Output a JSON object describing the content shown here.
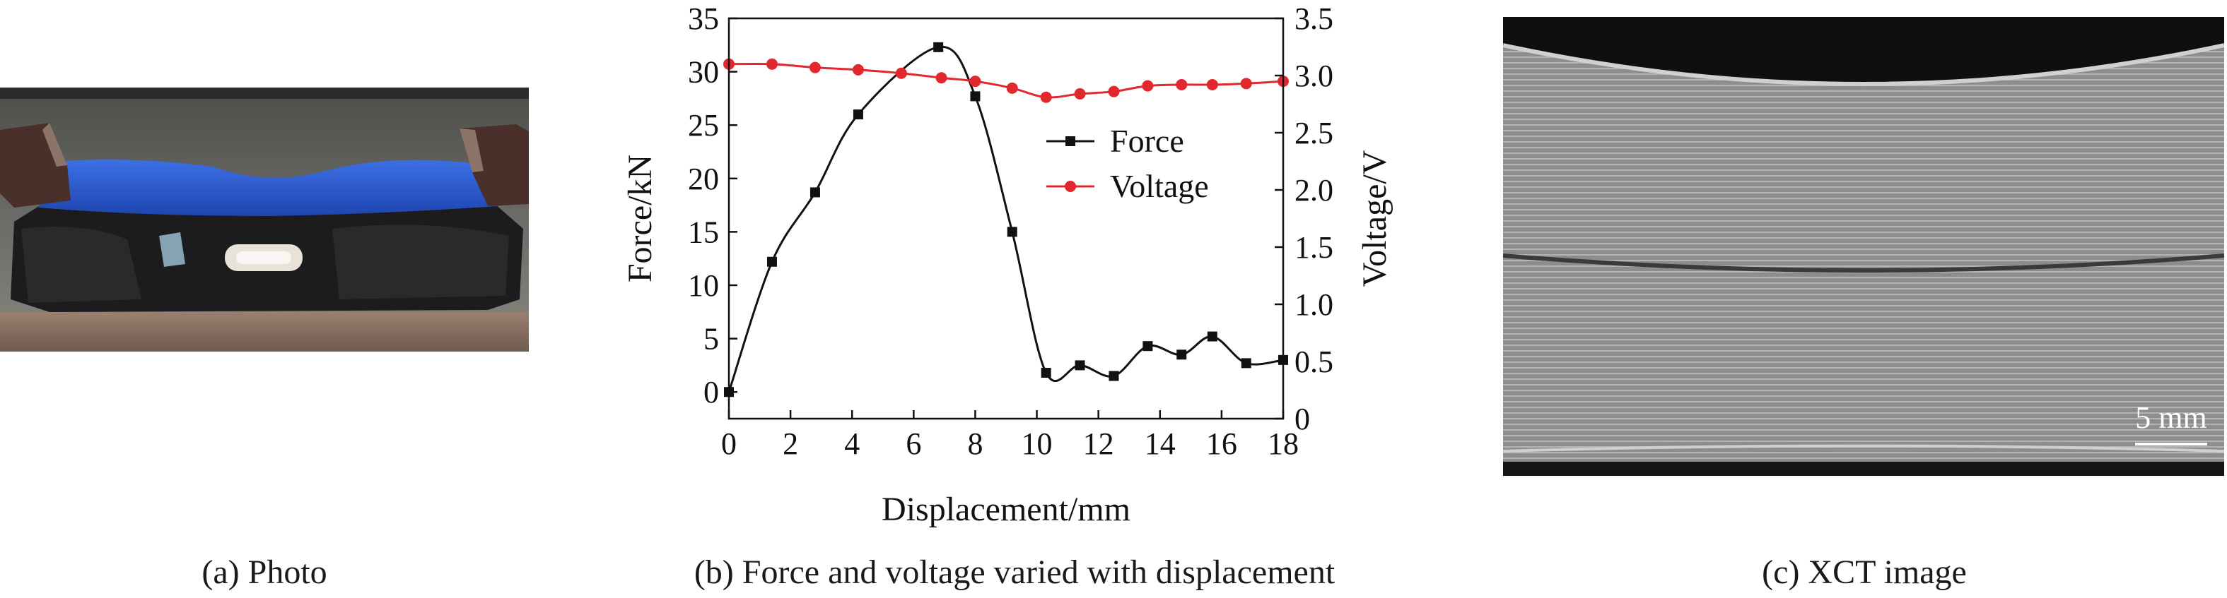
{
  "captions": {
    "a": "(a) Photo",
    "b": "(b) Force and voltage varied with displacement",
    "c": "(c) XCT image"
  },
  "xct": {
    "scale_bar_label": "5 mm"
  },
  "colors": {
    "force": "#111111",
    "voltage": "#e0282e",
    "pouch_blue": "#2f5fd0",
    "xct_gray": "#9a9a9a"
  },
  "chart_data": {
    "type": "line",
    "xlabel": "Displacement/mm",
    "ylabel_left": "Force/kN",
    "ylabel_right": "Voltage/V",
    "xlim": [
      0,
      18
    ],
    "ylim_left": [
      -2.5,
      35
    ],
    "ylim_right": [
      0,
      3.5
    ],
    "x_ticks": [
      "0",
      "2",
      "4",
      "6",
      "8",
      "10",
      "12",
      "14",
      "16",
      "18"
    ],
    "y_ticks_left": [
      "0",
      "5",
      "10",
      "15",
      "20",
      "25",
      "30",
      "35"
    ],
    "y_ticks_right": [
      "0",
      "0.5",
      "1.0",
      "1.5",
      "2.0",
      "2.5",
      "3.0",
      "3.5"
    ],
    "legend_position": "upper-right",
    "series": [
      {
        "name": "Force",
        "axis": "left",
        "marker": "square",
        "x": [
          0,
          1.4,
          2.8,
          4.2,
          6.8,
          8.0,
          9.2,
          10.3,
          11.4,
          12.5,
          13.6,
          14.7,
          15.7,
          16.8,
          18.0
        ],
        "y": [
          0,
          12.2,
          18.7,
          26.0,
          32.3,
          27.7,
          15.0,
          1.8,
          2.5,
          1.5,
          4.3,
          3.5,
          5.2,
          2.7,
          3.0
        ]
      },
      {
        "name": "Voltage",
        "axis": "right",
        "marker": "circle",
        "x": [
          0,
          1.4,
          2.8,
          4.2,
          5.6,
          6.9,
          8.0,
          9.2,
          10.3,
          11.4,
          12.5,
          13.6,
          14.7,
          15.7,
          16.8,
          18.0
        ],
        "y": [
          3.1,
          3.1,
          3.07,
          3.05,
          3.02,
          2.98,
          2.95,
          2.89,
          2.81,
          2.84,
          2.86,
          2.91,
          2.92,
          2.92,
          2.93,
          2.95
        ]
      }
    ]
  }
}
